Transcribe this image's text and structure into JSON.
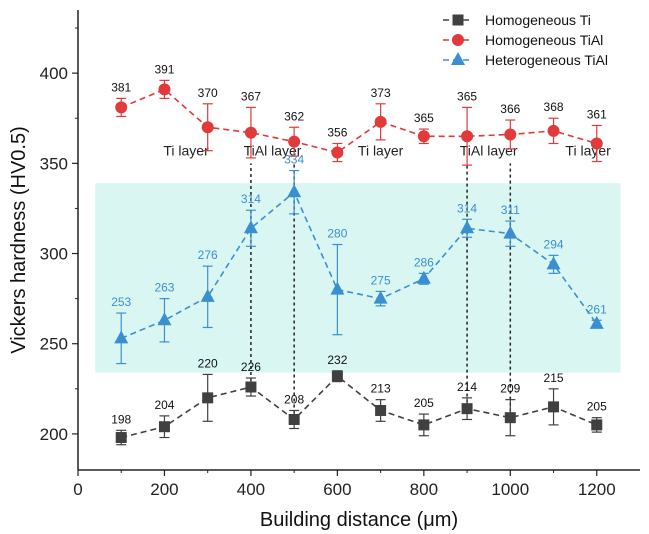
{
  "chart_data": {
    "type": "line",
    "xlabel": "Building distance (μm)",
    "ylabel": "Vickers hardness (HV0.5)",
    "xlim": [
      0,
      1300
    ],
    "ylim": [
      180,
      435
    ],
    "xticks": [
      0,
      200,
      400,
      600,
      800,
      1000,
      1200
    ],
    "yticks": [
      200,
      250,
      300,
      350,
      400
    ],
    "legend_position": "top-right",
    "series": [
      {
        "name": "Homogeneous Ti",
        "color": "#404040",
        "marker": "square",
        "x": [
          100,
          200,
          300,
          400,
          500,
          600,
          700,
          800,
          900,
          1000,
          1100,
          1200
        ],
        "values": [
          198,
          204,
          220,
          226,
          208,
          232,
          213,
          205,
          214,
          209,
          215,
          205
        ],
        "err": [
          4,
          6,
          13,
          5,
          5,
          3,
          6,
          6,
          6,
          10,
          10,
          4
        ],
        "labels": [
          "198",
          "204",
          "220",
          "226",
          "208",
          "232",
          "213",
          "205",
          "214",
          "209",
          "215",
          "205"
        ]
      },
      {
        "name": "Homogeneous TiAl",
        "color": "#e03a3a",
        "marker": "circle",
        "x": [
          100,
          200,
          300,
          400,
          500,
          600,
          700,
          800,
          900,
          1000,
          1100,
          1200
        ],
        "values": [
          381,
          391,
          370,
          367,
          362,
          356,
          373,
          365,
          365,
          366,
          368,
          361
        ],
        "err": [
          5,
          5,
          13,
          14,
          8,
          5,
          10,
          4,
          16,
          8,
          7,
          10
        ],
        "labels": [
          "381",
          "391",
          "370",
          "367",
          "362",
          "356",
          "373",
          "365",
          "365",
          "366",
          "368",
          "361"
        ]
      },
      {
        "name": "Heterogeneous TiAl",
        "color": "#3a8fd0",
        "marker": "triangle",
        "x": [
          100,
          200,
          300,
          400,
          500,
          600,
          700,
          800,
          900,
          1000,
          1100,
          1200
        ],
        "values": [
          253,
          263,
          276,
          314,
          334,
          280,
          275,
          286,
          314,
          311,
          294,
          261
        ],
        "err": [
          14,
          12,
          17,
          10,
          12,
          25,
          4,
          3,
          5,
          7,
          5,
          2
        ],
        "labels": [
          "253",
          "263",
          "276",
          "314",
          "334",
          "280",
          "275",
          "286",
          "314",
          "311",
          "294",
          "261"
        ]
      }
    ],
    "highlight_band": {
      "x": [
        40,
        1255
      ],
      "y": [
        234,
        339
      ],
      "color": "#d9f6f2"
    },
    "vertical_dotted_lines": [
      400,
      500,
      900,
      1000
    ],
    "region_labels": [
      {
        "text": "Ti layer",
        "x": 250
      },
      {
        "text": "TiAl layer",
        "x": 450
      },
      {
        "text": "Ti layer",
        "x": 700
      },
      {
        "text": "TiAl layer",
        "x": 950
      },
      {
        "text": "Ti layer",
        "x": 1180
      }
    ],
    "region_label_y": 357
  }
}
